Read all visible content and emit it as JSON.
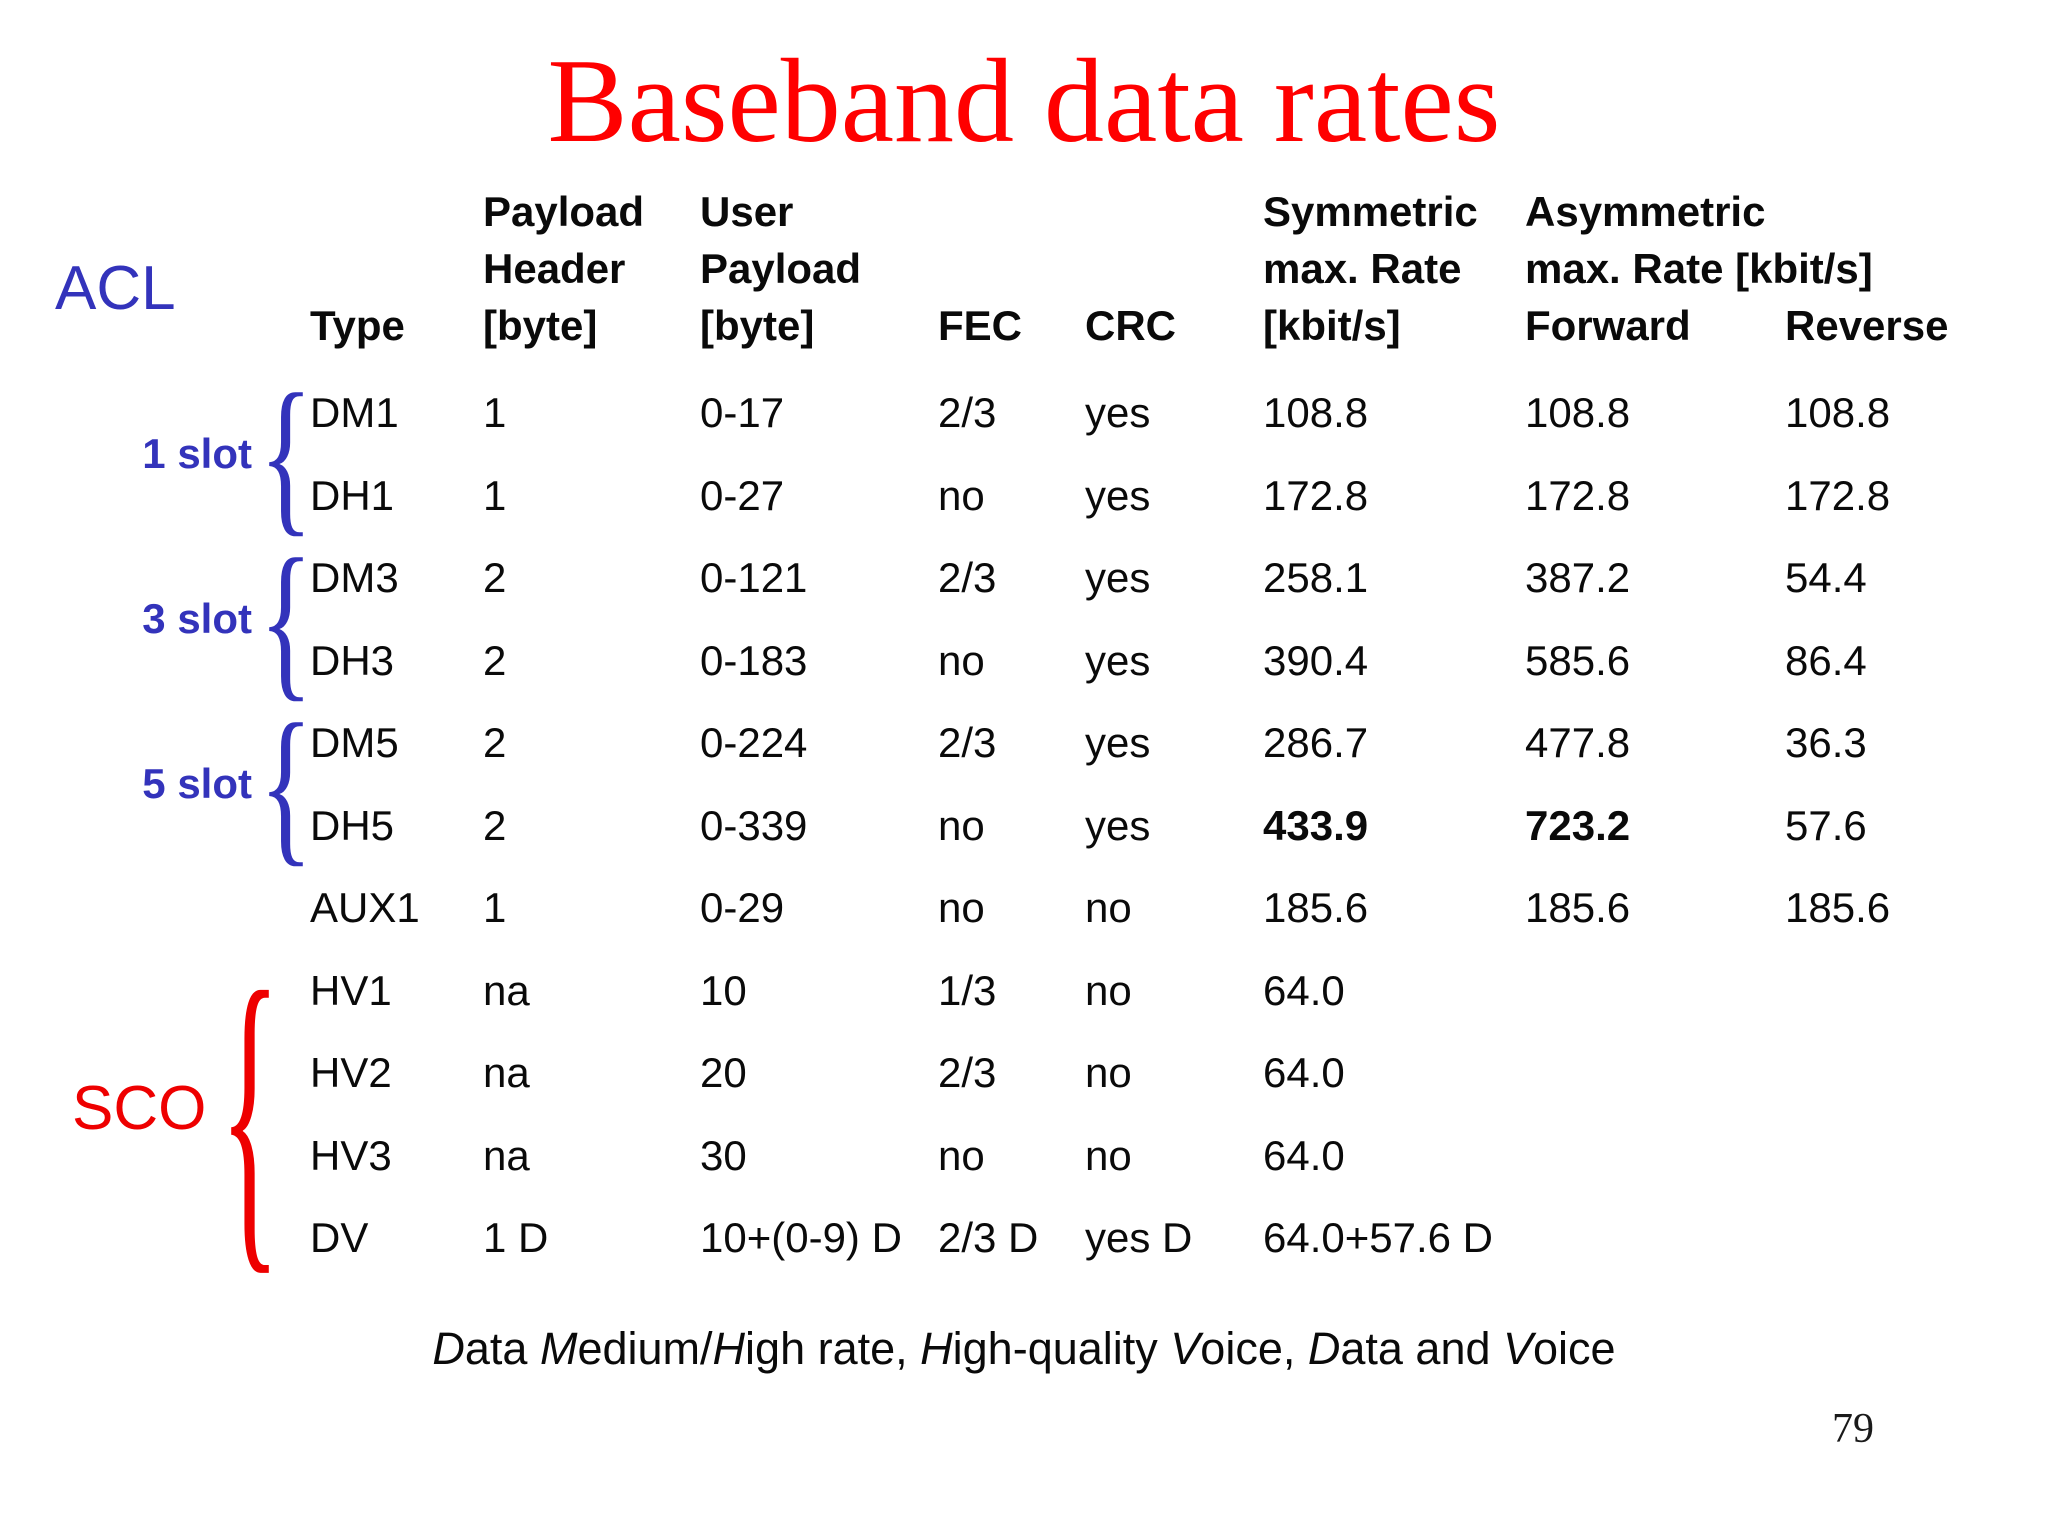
{
  "slide": {
    "title": "Baseband data rates",
    "page_number": "79"
  },
  "side": {
    "acl_label": "ACL",
    "sco_label": "SCO",
    "slot_labels": [
      "1 slot",
      "3 slot",
      "5 slot"
    ],
    "brace_glyph": "{"
  },
  "colors": {
    "title_red": "#ff0000",
    "annotation_blue": "#3333bb",
    "annotation_red": "#ee0000"
  },
  "table": {
    "header": {
      "row1": {
        "payload": "Payload",
        "user": "User",
        "symmetric": "Symmetric",
        "asymmetric": "Asymmetric"
      },
      "row2": {
        "payload": "Header",
        "user": "Payload",
        "symmetric": "max. Rate",
        "asymmetric": "max. Rate [kbit/s]"
      },
      "row3": {
        "type": "Type",
        "payload": "[byte]",
        "user": "[byte]",
        "fec": "FEC",
        "crc": "CRC",
        "symmetric": "[kbit/s]",
        "forward": "Forward",
        "reverse": "Reverse"
      }
    },
    "rows": [
      {
        "type": "DM1",
        "payload_header": "1",
        "user_payload": "0-17",
        "fec": "2/3",
        "crc": "yes",
        "symmetric": "108.8",
        "forward": "108.8",
        "reverse": "108.8",
        "bold": []
      },
      {
        "type": "DH1",
        "payload_header": "1",
        "user_payload": "0-27",
        "fec": "no",
        "crc": "yes",
        "symmetric": "172.8",
        "forward": "172.8",
        "reverse": "172.8",
        "bold": []
      },
      {
        "type": "DM3",
        "payload_header": "2",
        "user_payload": "0-121",
        "fec": "2/3",
        "crc": "yes",
        "symmetric": "258.1",
        "forward": "387.2",
        "reverse": "54.4",
        "bold": []
      },
      {
        "type": "DH3",
        "payload_header": "2",
        "user_payload": "0-183",
        "fec": "no",
        "crc": "yes",
        "symmetric": "390.4",
        "forward": "585.6",
        "reverse": "86.4",
        "bold": []
      },
      {
        "type": "DM5",
        "payload_header": "2",
        "user_payload": "0-224",
        "fec": "2/3",
        "crc": "yes",
        "symmetric": "286.7",
        "forward": "477.8",
        "reverse": "36.3",
        "bold": []
      },
      {
        "type": "DH5",
        "payload_header": "2",
        "user_payload": "0-339",
        "fec": "no",
        "crc": "yes",
        "symmetric": "433.9",
        "forward": "723.2",
        "reverse": "57.6",
        "bold": [
          "symmetric",
          "forward"
        ]
      },
      {
        "type": "AUX1",
        "payload_header": "1",
        "user_payload": "0-29",
        "fec": "no",
        "crc": "no",
        "symmetric": "185.6",
        "forward": "185.6",
        "reverse": "185.6",
        "bold": []
      },
      {
        "type": "HV1",
        "payload_header": "na",
        "user_payload": "10",
        "fec": "1/3",
        "crc": "no",
        "symmetric": "64.0",
        "forward": "",
        "reverse": "",
        "bold": []
      },
      {
        "type": "HV2",
        "payload_header": "na",
        "user_payload": "20",
        "fec": "2/3",
        "crc": "no",
        "symmetric": "64.0",
        "forward": "",
        "reverse": "",
        "bold": []
      },
      {
        "type": "HV3",
        "payload_header": "na",
        "user_payload": "30",
        "fec": "no",
        "crc": "no",
        "symmetric": "64.0",
        "forward": "",
        "reverse": "",
        "bold": []
      },
      {
        "type": "DV",
        "payload_header": "1 D",
        "user_payload": "10+(0-9) D",
        "fec": "2/3 D",
        "crc": "yes D",
        "symmetric": "64.0+57.6 D",
        "forward": "",
        "reverse": "",
        "bold": []
      }
    ]
  },
  "footnote": {
    "segments": [
      {
        "text": "D",
        "italic": true
      },
      {
        "text": "ata ",
        "italic": false
      },
      {
        "text": "M",
        "italic": true
      },
      {
        "text": "edium/",
        "italic": false
      },
      {
        "text": "H",
        "italic": true
      },
      {
        "text": "igh rate, ",
        "italic": false
      },
      {
        "text": "H",
        "italic": true
      },
      {
        "text": "igh-quality ",
        "italic": false
      },
      {
        "text": "V",
        "italic": true
      },
      {
        "text": "oice, ",
        "italic": false
      },
      {
        "text": "D",
        "italic": true
      },
      {
        "text": "ata and ",
        "italic": false
      },
      {
        "text": "V",
        "italic": true
      },
      {
        "text": "oice",
        "italic": false
      }
    ]
  }
}
